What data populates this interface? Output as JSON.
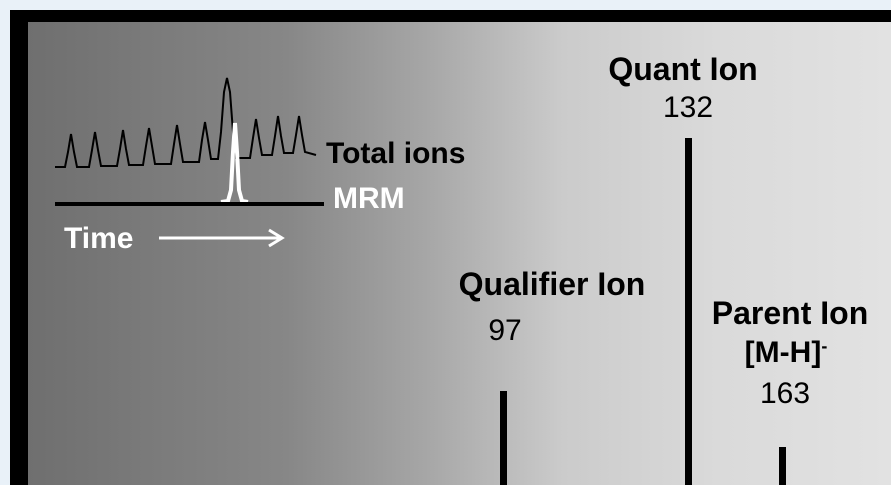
{
  "inset": {
    "total_label": "Total ions",
    "mrm_label": "MRM",
    "time_label": "Time"
  },
  "ions": [
    {
      "title": "Quant Ion",
      "mz": "132",
      "relative_height": 1.0
    },
    {
      "title": "Qualifier Ion",
      "mz": "97",
      "relative_height": 0.27
    },
    {
      "title": "Parent Ion",
      "formula": "[M-H]",
      "charge": "-",
      "mz": "163",
      "relative_height": 0.11
    }
  ],
  "colors": {
    "frame": "#000000",
    "page_bg": "#e9f1f8",
    "text": "#000000",
    "inset_text": "#ffffff"
  }
}
